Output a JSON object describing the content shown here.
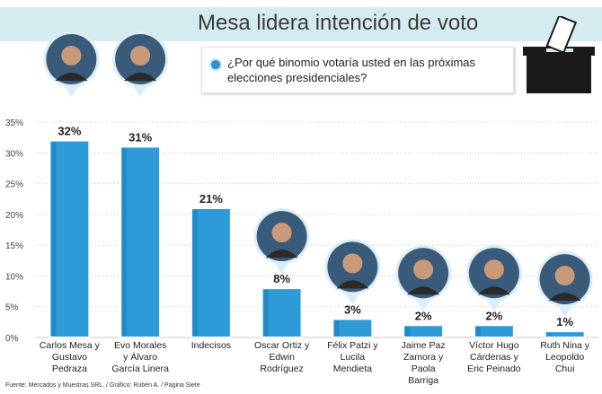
{
  "header": {
    "title": "Mesa lidera intención de voto",
    "question": "¿Por qué binomio votaría usted en las próximas elecciones presidenciales?"
  },
  "footer": {
    "source": "Fuente: Mercados y Muestras SRL. / Gráfico: Rubén A. / Página Siete"
  },
  "icons": {
    "question_bullet": "bullet-dot-icon",
    "ballot": "ballot-box-icon",
    "candidate": "candidate-portrait-icon"
  },
  "colors": {
    "bar": "#2f9ad8",
    "bar_dark": "#1d7fc0",
    "accent_band": "#d4ecf0",
    "text": "#222222"
  },
  "chart_data": {
    "type": "bar",
    "categories": [
      [
        "Carlos Mesa y",
        "Gustavo",
        "Pedraza"
      ],
      [
        "Evo Morales",
        "y Álvaro",
        "García Linera"
      ],
      [
        "Indecisos"
      ],
      [
        "Oscar Ortiz y",
        "Edwin",
        "Rodríguez"
      ],
      [
        "Félix Patzi y",
        "Lucila",
        "Mendieta"
      ],
      [
        "Jaime Paz",
        "Zamora y",
        "Paola",
        "Barriga"
      ],
      [
        "Víctor Hugo",
        "Cárdenas y",
        "Eric Peinado"
      ],
      [
        "Ruth Nina y",
        "Leopoldo",
        "Chui"
      ]
    ],
    "values": [
      32,
      31,
      21,
      8,
      3,
      2,
      2,
      1
    ],
    "value_labels": [
      "32%",
      "31%",
      "21%",
      "8%",
      "3%",
      "2%",
      "2%",
      "1%"
    ],
    "yticks": [
      "0%",
      "5%",
      "10%",
      "15%",
      "20%",
      "25%",
      "30%",
      "35%"
    ],
    "ylim": [
      0,
      35
    ],
    "has_portrait": [
      true,
      true,
      false,
      true,
      true,
      true,
      true,
      true
    ],
    "grid": true
  }
}
